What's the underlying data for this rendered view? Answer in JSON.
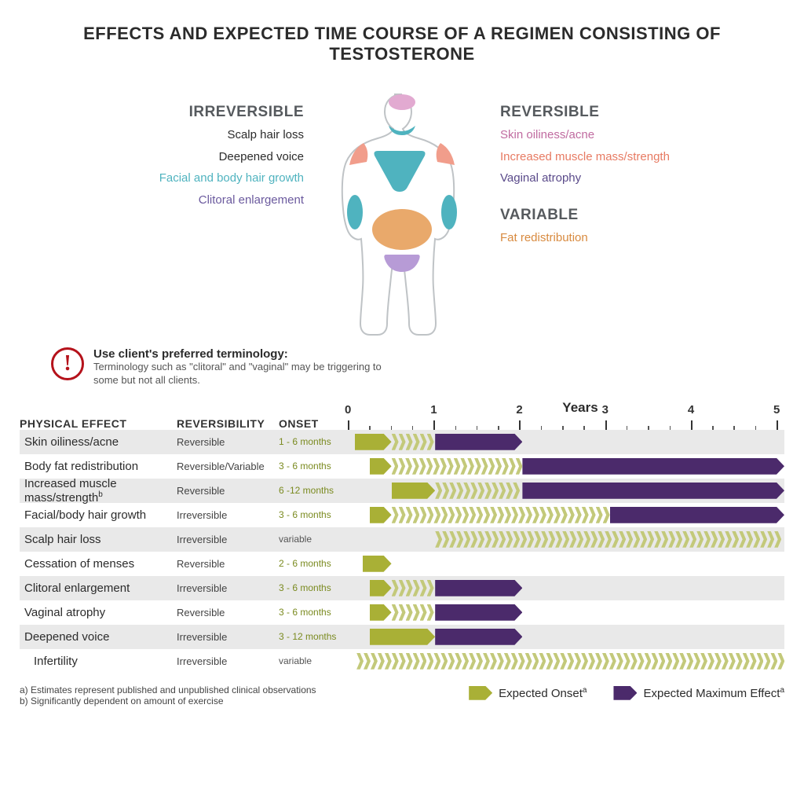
{
  "title": "EFFECTS AND EXPECTED TIME COURSE OF A REGIMEN CONSISTING OF TESTOSTERONE",
  "colors": {
    "olive": "#a9b036",
    "olive_faded": "#c3c97a",
    "purple": "#4b2a6b",
    "purple_faded": "#8b72a6",
    "teal": "#4fb3bf",
    "salmon": "#f19d8b",
    "orange": "#e9a96b",
    "lilac": "#b79bd6",
    "pink": "#e2aad1",
    "grey_hdr": "#565a5e",
    "warn_red": "#b5121b",
    "row_shade": "#e9e9e9",
    "black": "#2b2b2b"
  },
  "sections": {
    "irreversible": {
      "header": "IRREVERSIBLE",
      "items": [
        {
          "text": "Scalp hair loss",
          "color": "#2b2b2b"
        },
        {
          "text": "Deepened voice",
          "color": "#2b2b2b"
        },
        {
          "text": "Facial and body hair growth",
          "color": "#4fb3bf"
        },
        {
          "text": "Clitoral enlargement",
          "color": "#6b5a9e"
        }
      ]
    },
    "reversible": {
      "header": "REVERSIBLE",
      "items": [
        {
          "text": "Skin oiliness/acne",
          "color": "#c06ba0"
        },
        {
          "text": "Increased muscle mass/strength",
          "color": "#e77a62"
        },
        {
          "text": "Vaginal atrophy",
          "color": "#5a4a8a"
        }
      ]
    },
    "variable": {
      "header": "VARIABLE",
      "items": [
        {
          "text": "Fat redistribution",
          "color": "#d88a3f"
        }
      ]
    }
  },
  "warning": {
    "title": "Use client's preferred terminology:",
    "body": "Terminology such as \"clitoral\" and \"vaginal\" may be triggering to some but not all clients."
  },
  "axis": {
    "years_label": "Years",
    "col_effect": "PHYSICAL EFFECT",
    "col_rev": "REVERSIBILITY",
    "col_onset": "ONSET",
    "year_max": 5,
    "minor_per_year": 3
  },
  "timeline": [
    {
      "effect": "Skin oiliness/acne",
      "rev": "Reversible",
      "onset": "1 - 6 months",
      "segs": [
        {
          "type": "solid",
          "color": "olive",
          "start": 0.08,
          "end": 0.5
        },
        {
          "type": "chev",
          "color": "olive_faded",
          "start": 0.5,
          "end": 1.0
        },
        {
          "type": "solid",
          "color": "purple",
          "start": 1.0,
          "end": 2.0
        }
      ]
    },
    {
      "effect": "Body fat redistribution",
      "rev": "Reversible/Variable",
      "onset": "3 - 6 months",
      "segs": [
        {
          "type": "solid",
          "color": "olive",
          "start": 0.25,
          "end": 0.5
        },
        {
          "type": "chev",
          "color": "olive_faded",
          "start": 0.5,
          "end": 2.0
        },
        {
          "type": "solid",
          "color": "purple",
          "start": 2.0,
          "end": 5.0
        }
      ]
    },
    {
      "effect": "Increased muscle mass/strength",
      "sup": "b",
      "rev": "Reversible",
      "onset": "6 -12 months",
      "segs": [
        {
          "type": "solid",
          "color": "olive",
          "start": 0.5,
          "end": 1.0
        },
        {
          "type": "chev",
          "color": "olive_faded",
          "start": 1.0,
          "end": 2.0
        },
        {
          "type": "solid",
          "color": "purple",
          "start": 2.0,
          "end": 5.0
        }
      ]
    },
    {
      "effect": "Facial/body hair growth",
      "rev": "Irreversible",
      "onset": "3 - 6 months",
      "segs": [
        {
          "type": "solid",
          "color": "olive",
          "start": 0.25,
          "end": 0.5
        },
        {
          "type": "chev",
          "color": "olive_faded",
          "start": 0.5,
          "end": 3.0
        },
        {
          "type": "solid",
          "color": "purple",
          "start": 3.0,
          "end": 5.0
        }
      ]
    },
    {
      "effect": "Scalp hair loss",
      "rev": "Irreversible",
      "onset": "variable",
      "onset_color": "#555",
      "segs": [
        {
          "type": "chev",
          "color": "olive_faded",
          "start": 1.0,
          "end": 5.0
        }
      ]
    },
    {
      "effect": "Cessation of menses",
      "rev": "Reversible",
      "onset": "2 - 6 months",
      "segs": [
        {
          "type": "solid",
          "color": "olive",
          "start": 0.17,
          "end": 0.5
        }
      ]
    },
    {
      "effect": "Clitoral enlargement",
      "rev": "Irreversible",
      "onset": "3 - 6 months",
      "segs": [
        {
          "type": "solid",
          "color": "olive",
          "start": 0.25,
          "end": 0.5
        },
        {
          "type": "chev",
          "color": "olive_faded",
          "start": 0.5,
          "end": 1.0
        },
        {
          "type": "solid",
          "color": "purple",
          "start": 1.0,
          "end": 2.0
        }
      ]
    },
    {
      "effect": "Vaginal atrophy",
      "rev": "Reversible",
      "onset": "3 - 6 months",
      "segs": [
        {
          "type": "solid",
          "color": "olive",
          "start": 0.25,
          "end": 0.5
        },
        {
          "type": "chev",
          "color": "olive_faded",
          "start": 0.5,
          "end": 1.0
        },
        {
          "type": "solid",
          "color": "purple",
          "start": 1.0,
          "end": 2.0
        }
      ]
    },
    {
      "effect": "Deepened voice",
      "rev": "Irreversible",
      "onset": "3 - 12 months",
      "segs": [
        {
          "type": "solid",
          "color": "olive",
          "start": 0.25,
          "end": 1.0
        },
        {
          "type": "chev",
          "color": "olive_faded",
          "start": 1.0,
          "end": 1.0
        },
        {
          "type": "solid",
          "color": "purple",
          "start": 1.0,
          "end": 2.0
        }
      ]
    },
    {
      "effect": "Infertility",
      "rev": "Irreversible",
      "onset": "variable",
      "onset_color": "#555",
      "indent": true,
      "segs": [
        {
          "type": "chev",
          "color": "olive_faded",
          "start": 0.1,
          "end": 5.0
        }
      ]
    }
  ],
  "legend": {
    "onset": "Expected Onset",
    "max": "Expected Maximum Effect",
    "sup": "a"
  },
  "footnotes": {
    "a": "a) Estimates represent published and unpublished clinical observations",
    "b": "b) Significantly dependent on amount of exercise"
  }
}
